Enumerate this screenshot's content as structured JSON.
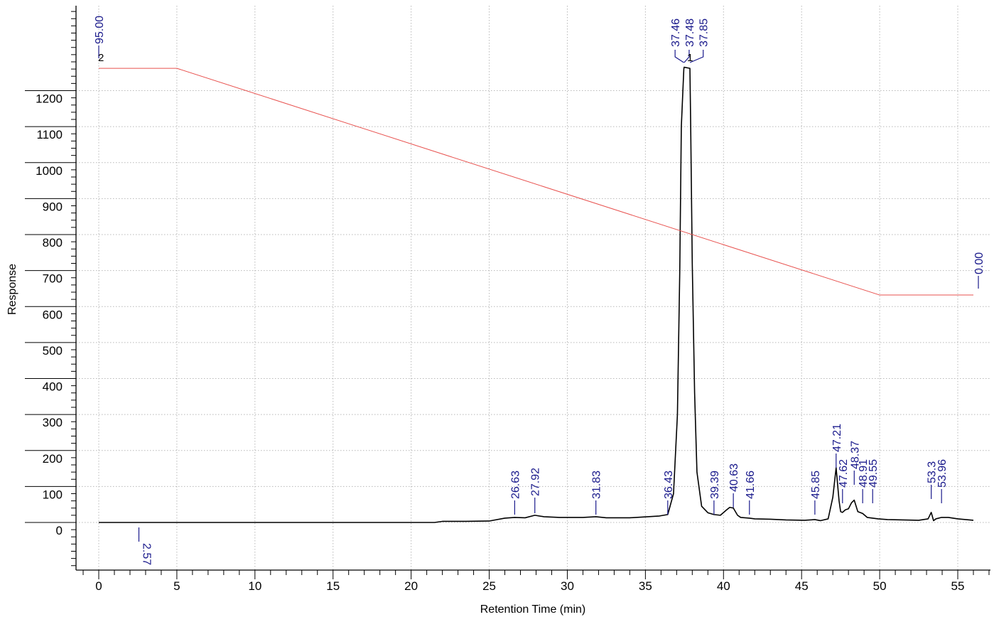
{
  "chart_data": {
    "type": "line",
    "title": "",
    "xlabel": "Retention Time (min)",
    "ylabel": "Response",
    "xlim": [
      -1.5,
      57.5
    ],
    "ylim": [
      -135,
      1425
    ],
    "grid": true,
    "x_ticks": [
      0,
      5,
      10,
      15,
      20,
      25,
      30,
      35,
      40,
      45,
      50,
      55
    ],
    "y_ticks": [
      0,
      100,
      200,
      300,
      400,
      500,
      600,
      700,
      800,
      900,
      1000,
      1100,
      1200
    ],
    "series": [
      {
        "color": "#000000",
        "x": [
          0,
          21.5,
          22,
          23.5,
          25,
          26,
          26.63,
          27.3,
          27.92,
          28.5,
          29.5,
          31,
          31.83,
          32.5,
          34,
          35.9,
          36.43,
          36.8,
          37.05,
          37.2,
          37.3,
          37.46,
          37.48,
          37.85,
          37.9,
          38.0,
          38.15,
          38.3,
          38.6,
          39.0,
          39.39,
          39.8,
          40.2,
          40.4,
          40.63,
          40.9,
          41.1,
          41.66,
          42,
          43,
          44,
          45.2,
          45.85,
          46.2,
          46.7,
          47.0,
          47.21,
          47.4,
          47.5,
          47.62,
          47.8,
          48.0,
          48.2,
          48.37,
          48.6,
          48.91,
          49.2,
          49.55,
          49.9,
          50.5,
          51.5,
          52.5,
          53.1,
          53.3,
          53.45,
          53.6,
          53.96,
          54.4,
          55,
          56
        ],
        "y": [
          0,
          0,
          3,
          3,
          4,
          12,
          14,
          13,
          20,
          16,
          14,
          14,
          16,
          13,
          13,
          18,
          22,
          80,
          300,
          700,
          1100,
          1260,
          1265,
          1262,
          1100,
          720,
          360,
          140,
          45,
          27,
          22,
          20,
          35,
          42,
          40,
          20,
          14,
          12,
          10,
          9,
          7,
          6,
          8,
          5,
          10,
          70,
          152,
          60,
          30,
          28,
          35,
          38,
          55,
          62,
          30,
          25,
          14,
          12,
          10,
          8,
          7,
          6,
          10,
          28,
          5,
          10,
          14,
          14,
          10,
          6
        ]
      },
      {
        "color": "#e8524f",
        "x": [
          0,
          5,
          50,
          56
        ],
        "y": [
          1262,
          1262,
          632,
          632
        ]
      }
    ],
    "peak_labels": [
      {
        "x": 26.63,
        "text": "26.63"
      },
      {
        "x": 27.92,
        "text": "27.92"
      },
      {
        "x": 31.83,
        "text": "31.83"
      },
      {
        "x": 36.43,
        "text": "36.43"
      },
      {
        "x": 39.39,
        "text": "39.39"
      },
      {
        "x": 40.63,
        "text": "40.63"
      },
      {
        "x": 41.66,
        "text": "41.66"
      },
      {
        "x": 45.85,
        "text": "45.85"
      },
      {
        "x": 47.21,
        "text": "47.21"
      },
      {
        "x": 47.62,
        "text": "47.62"
      },
      {
        "x": 48.37,
        "text": "48.37"
      },
      {
        "x": 48.91,
        "text": "48.91"
      },
      {
        "x": 49.55,
        "text": "49.55"
      },
      {
        "x": 53.3,
        "text": "53.3"
      },
      {
        "x": 53.96,
        "text": "53.96"
      },
      {
        "x": 37.46,
        "text": "37.46"
      },
      {
        "x": 37.48,
        "text": "37.48"
      },
      {
        "x": 37.85,
        "text": "37.85"
      },
      {
        "x": 2.57,
        "text": "2.57"
      }
    ],
    "gradient_labels": [
      {
        "x": 0,
        "text": "95.00"
      },
      {
        "x": 56,
        "text": "0.00"
      }
    ],
    "markers": [
      "2",
      "1"
    ]
  }
}
